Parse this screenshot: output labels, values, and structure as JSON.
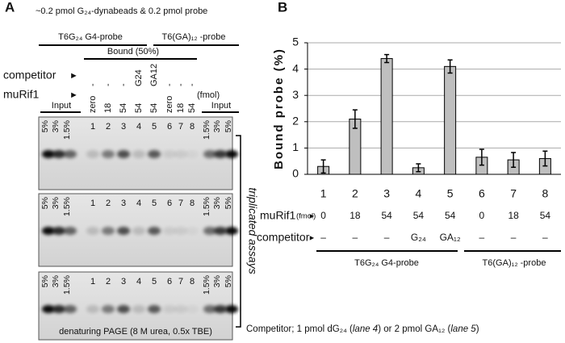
{
  "panel_a": {
    "label": "A",
    "title": "~0.2 pmol G₂₄-dynabeads & 0.2 pmol probe",
    "probe_groups": [
      "T6G₂₄ G4-probe",
      "T6(GA)₁₂ -probe"
    ],
    "bound": "Bound (50%)",
    "competitor_label": "competitor",
    "murif1_label": "muRif1",
    "arrow": "►",
    "fmol": "(fmol)",
    "competitor_lanes": [
      "-",
      "-",
      "-",
      "G24",
      "GA12",
      "-",
      "-",
      "-"
    ],
    "murif1_lanes": [
      "zero",
      "18",
      "54",
      "54",
      "54",
      "zero",
      "18",
      "54"
    ],
    "input": "Input",
    "gels": [
      {
        "lanes": [
          "5%",
          "3%",
          "1.5%",
          "1",
          "2",
          "3",
          "4",
          "5",
          "6",
          "7",
          "8",
          "1.5%",
          "3%",
          "5%"
        ]
      },
      {
        "lanes": [
          "5%",
          "3%",
          "1.5%",
          "1",
          "2",
          "3",
          "4",
          "5",
          "6",
          "7",
          "8",
          "1.5%",
          "3%",
          "5%"
        ]
      },
      {
        "lanes": [
          "5%",
          "3%",
          "1.5%",
          "1",
          "2",
          "3",
          "4",
          "5",
          "6",
          "7",
          "8",
          "1.5%",
          "3%",
          "5%"
        ]
      }
    ],
    "gel_footer": "denaturing PAGE (8 M urea, 0.5x TBE)",
    "side_label": "triplicated assays"
  },
  "panel_b": {
    "label": "B",
    "murif1_label": "muRif1",
    "fmol": "(fmol)",
    "arrow": "►",
    "competitor_label": "competitor",
    "murif1": [
      "0",
      "18",
      "54",
      "54",
      "54",
      "0",
      "18",
      "54"
    ],
    "competitor": [
      "–",
      "–",
      "–",
      "G₂₄",
      "GA₁₂",
      "–",
      "–",
      "–"
    ],
    "groups": [
      "T6G₂₄ G4-probe",
      "T6(GA)₁₂ -probe"
    ]
  },
  "chart_data": {
    "type": "bar",
    "y_label": "Bound probe (%)",
    "categories": [
      "1",
      "2",
      "3",
      "4",
      "5",
      "6",
      "7",
      "8"
    ],
    "values": [
      0.3,
      2.1,
      4.4,
      0.25,
      4.1,
      0.65,
      0.55,
      0.6
    ],
    "errors": [
      0.25,
      0.35,
      0.15,
      0.15,
      0.25,
      0.3,
      0.28,
      0.28
    ],
    "color": "#bfbfbf",
    "ylim": [
      0,
      5
    ],
    "yticks": [
      0,
      1,
      2,
      3,
      4,
      5
    ],
    "grid": true
  },
  "footnote": [
    "Competitor; 1 pmol dG₂₄ (",
    "lane 4",
    ") or 2 pmol GA₁₂ (",
    "lane 5",
    ")"
  ]
}
